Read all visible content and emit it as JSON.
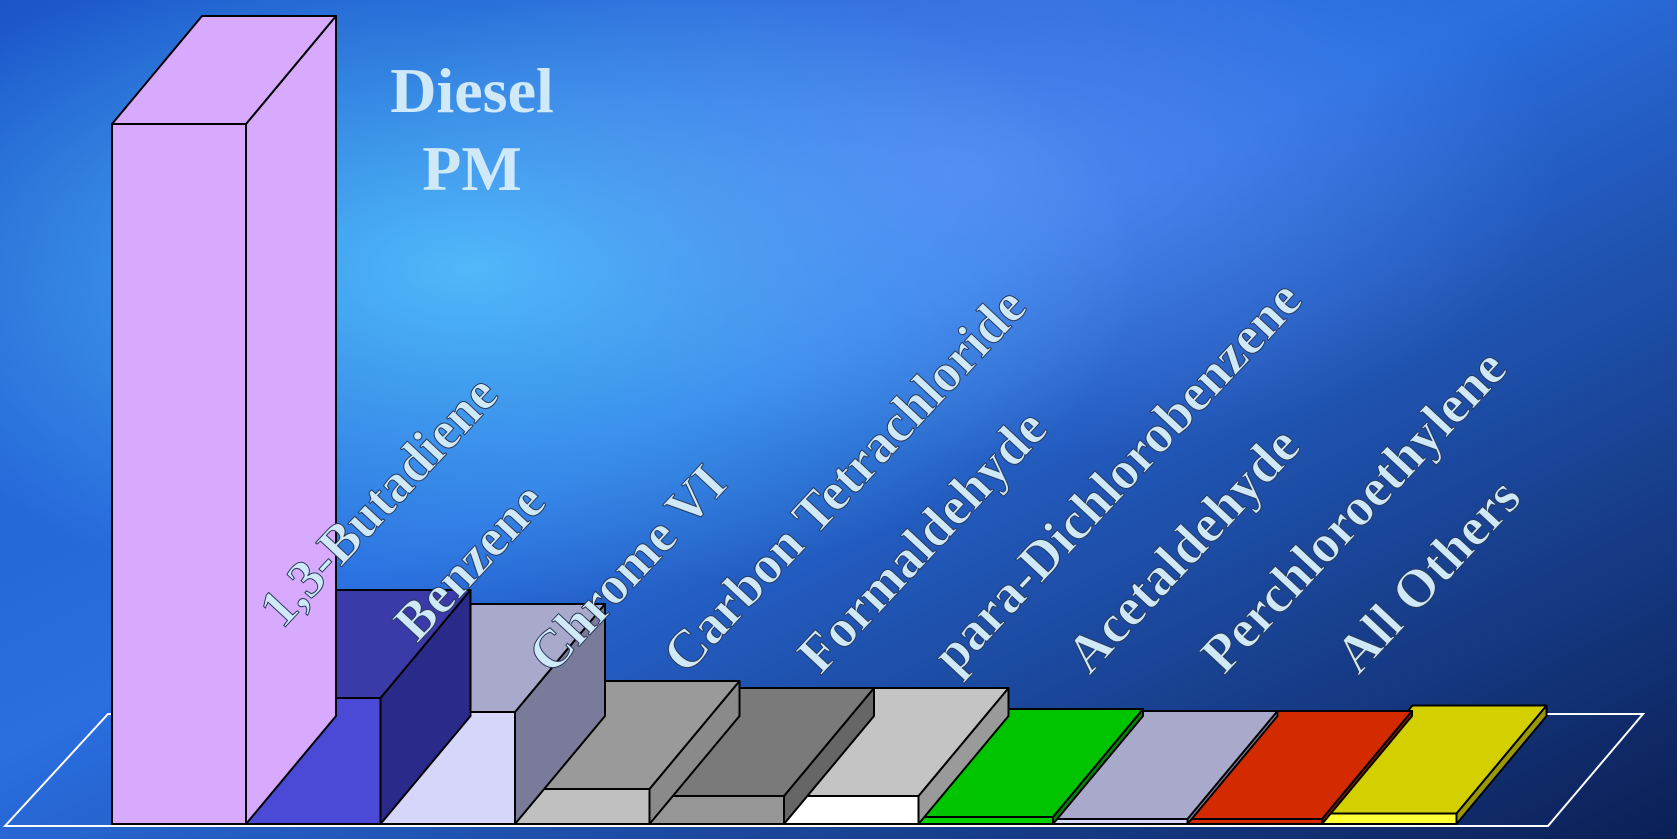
{
  "chart_data": {
    "type": "bar",
    "categories": [
      "Diesel PM",
      "1,3-Butadiene",
      "Benzene",
      "Chrome VI",
      "Carbon Tetrachloride",
      "Formaldehyde",
      "para-Dichlorobenzene",
      "Acetaldehyde",
      "Perchloroethylene",
      "All Others"
    ],
    "values": [
      100,
      18,
      16,
      5,
      4,
      4,
      1,
      0.7,
      0.5,
      1.5
    ],
    "colors": [
      {
        "front": "#d8aaff",
        "side": "#d8aaff",
        "top": "#d8aaff"
      },
      {
        "front": "#4a4ad6",
        "side": "#2a2a8a",
        "top": "#3a3aa8"
      },
      {
        "front": "#d6d6fa",
        "side": "#7a7a9a",
        "top": "#a9a9cc"
      },
      {
        "front": "#c0c0c0",
        "side": "#8a8a8a",
        "top": "#9a9a9a"
      },
      {
        "front": "#969696",
        "side": "#666666",
        "top": "#7a7a7a"
      },
      {
        "front": "#ffffff",
        "side": "#9a9a9a",
        "top": "#c4c4c4"
      },
      {
        "front": "#00d000",
        "side": "#008800",
        "top": "#00c400"
      },
      {
        "front": "#d6d6fa",
        "side": "#8080a0",
        "top": "#a9a9cc"
      },
      {
        "front": "#d42a00",
        "side": "#8a1a00",
        "top": "#d42a00"
      },
      {
        "front": "#ffff33",
        "side": "#9a9a00",
        "top": "#d4d000"
      }
    ],
    "title": "",
    "xlabel": "",
    "ylabel": "",
    "ylim": [
      0,
      100
    ],
    "grid": false,
    "legend": "none",
    "title_lines": [
      "Diesel",
      "PM"
    ]
  }
}
